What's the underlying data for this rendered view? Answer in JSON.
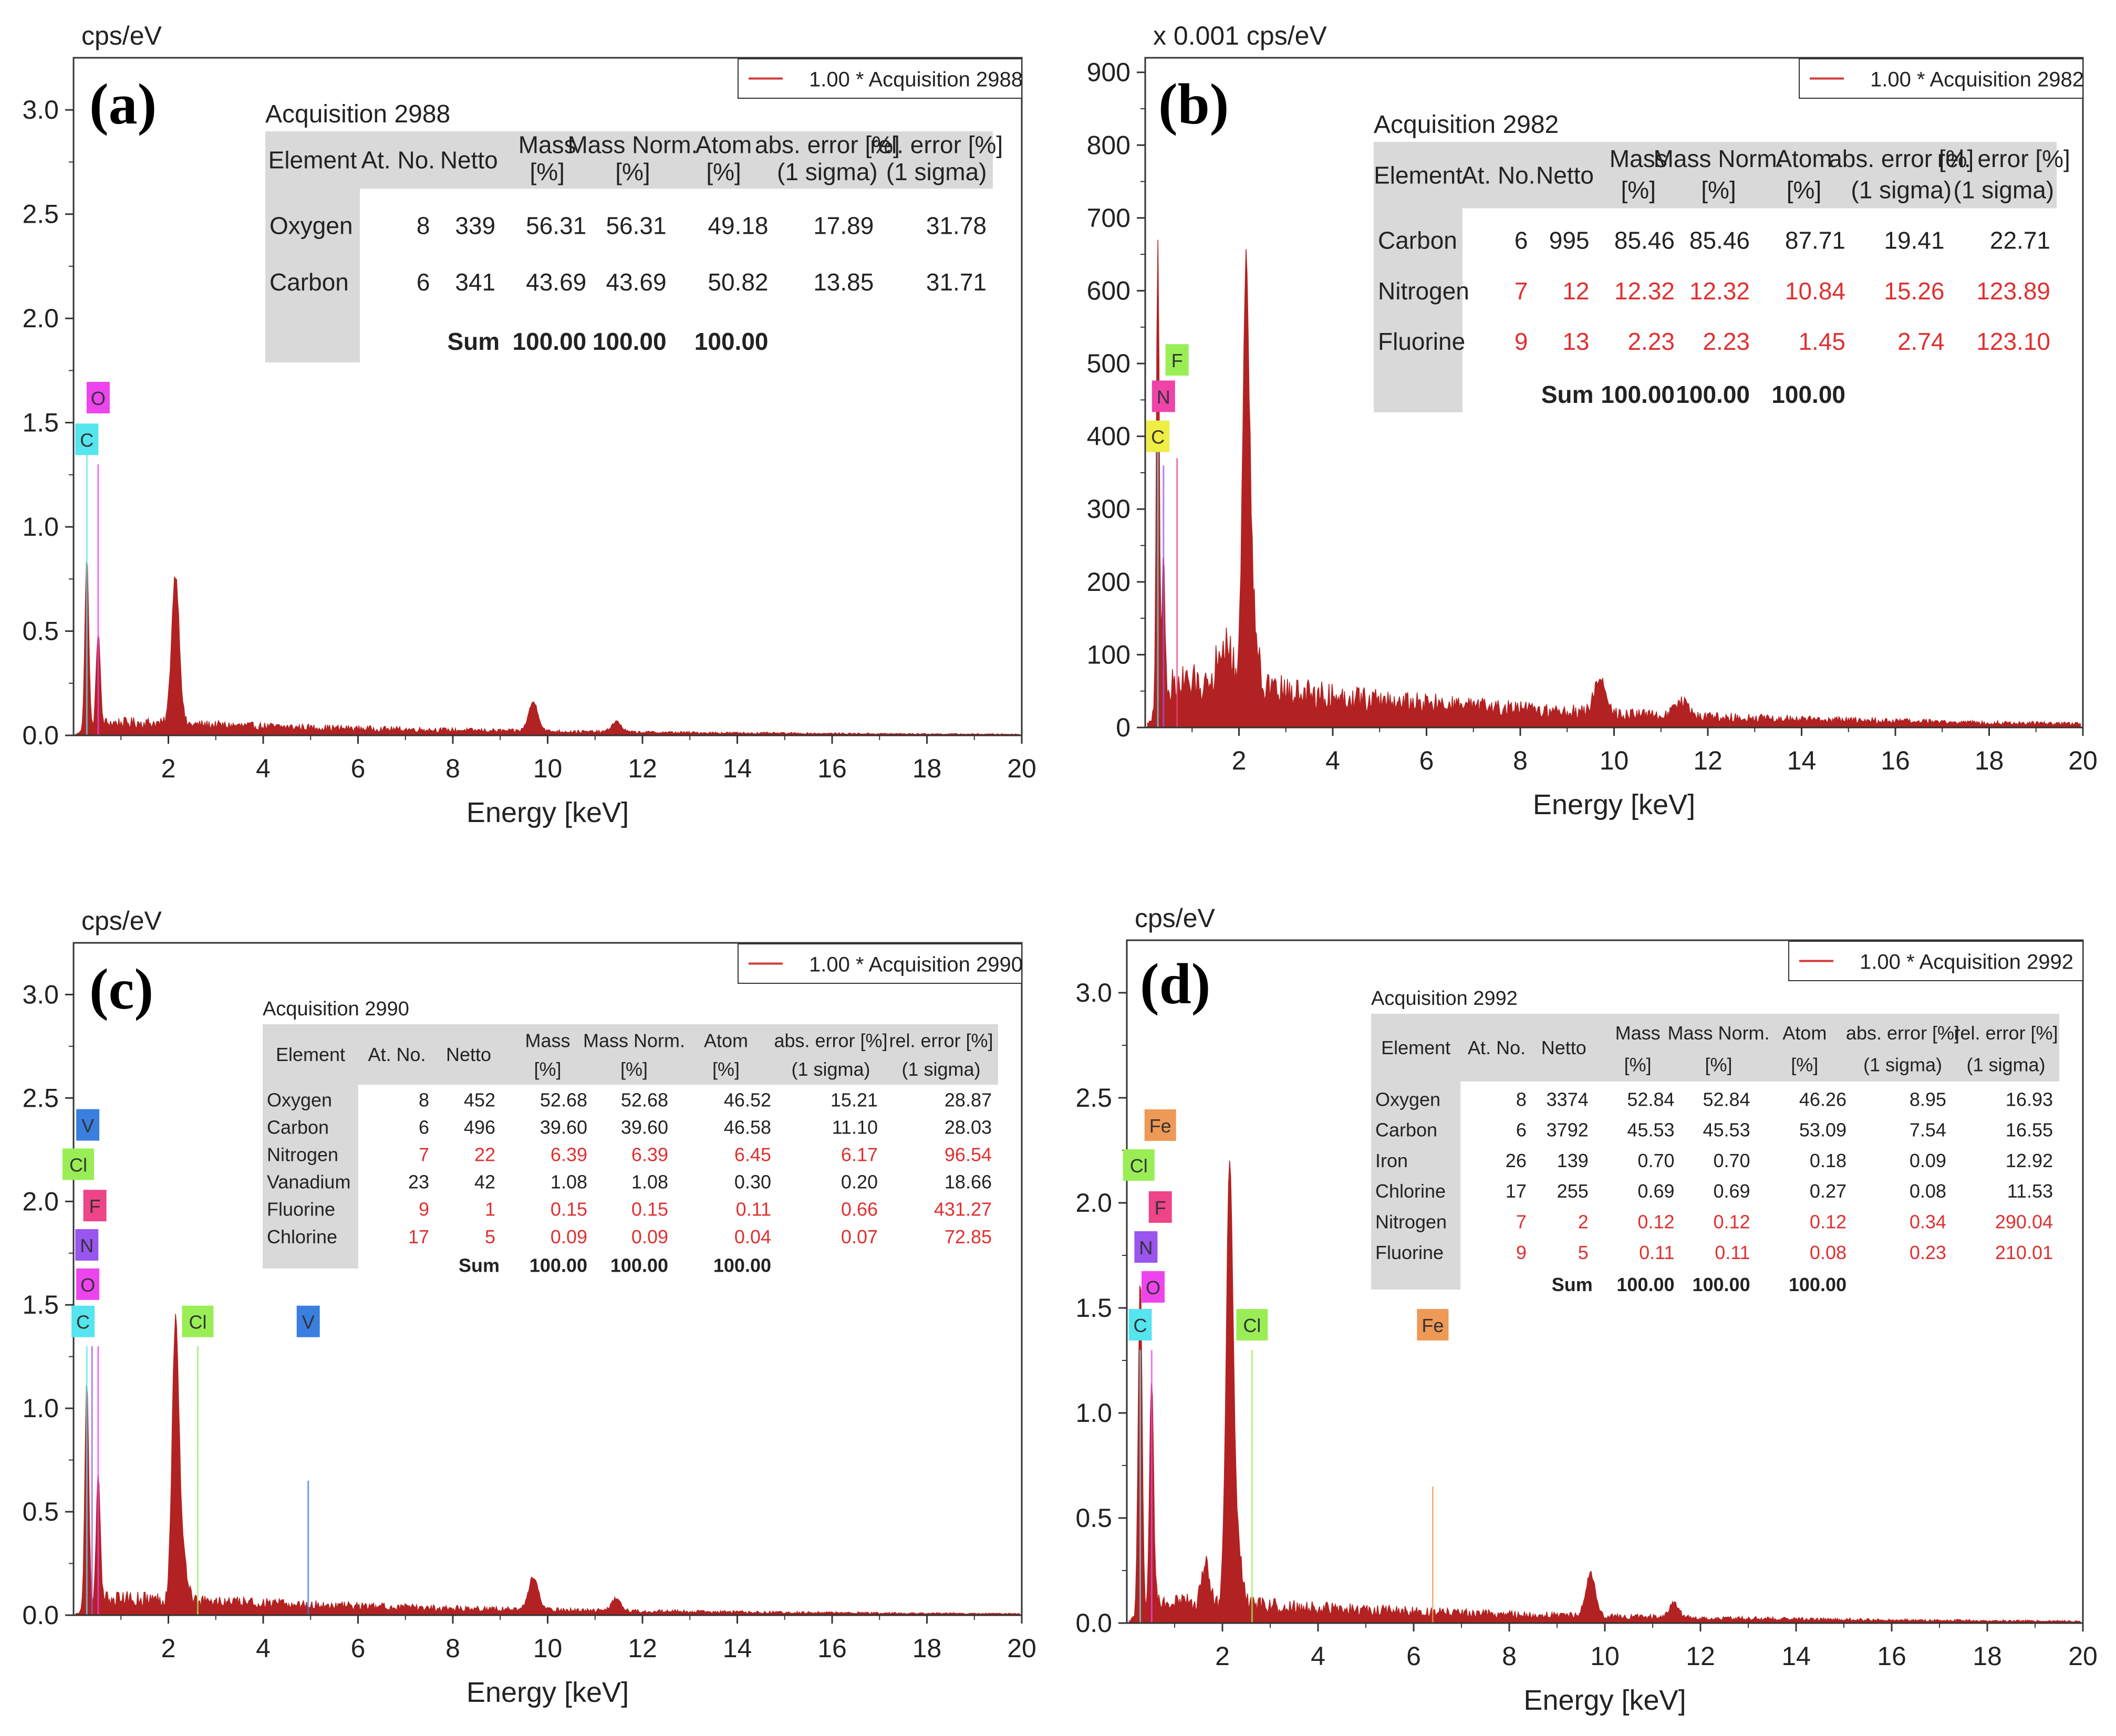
{
  "figure": {
    "panels": [
      {
        "letter": "(a)",
        "y_unit": "cps/eV",
        "legend": "1.00 * Acquisition 2988",
        "table": {
          "title": "Acquisition 2988",
          "headers": [
            [
              "Element"
            ],
            [
              "At. No."
            ],
            [
              "Netto"
            ],
            [
              "Mass",
              "[%]"
            ],
            [
              "Mass Norm.",
              "[%]"
            ],
            [
              "Atom",
              "[%]"
            ],
            [
              "abs. error [%]",
              "(1 sigma)"
            ],
            [
              "rel. error [%]",
              "(1 sigma)"
            ]
          ],
          "rows": [
            {
              "element": "Oxygen",
              "at_no": "8",
              "netto": "339",
              "mass": "56.31",
              "mass_norm": "56.31",
              "atom": "49.18",
              "abs_error": "17.89",
              "rel_error": "31.78",
              "flag": false
            },
            {
              "element": "Carbon",
              "at_no": "6",
              "netto": "341",
              "mass": "43.69",
              "mass_norm": "43.69",
              "atom": "50.82",
              "abs_error": "13.85",
              "rel_error": "31.71",
              "flag": false
            }
          ],
          "sum": {
            "label": "Sum",
            "mass": "100.00",
            "mass_norm": "100.00",
            "atom": "100.00"
          }
        }
      },
      {
        "letter": "(b)",
        "y_unit": "x 0.001 cps/eV",
        "legend": "1.00 * Acquisition 2982",
        "table": {
          "title": "Acquisition 2982",
          "headers": [
            [
              "Element"
            ],
            [
              "At. No."
            ],
            [
              "Netto"
            ],
            [
              "Mass",
              "[%]"
            ],
            [
              "Mass Norm.",
              "[%]"
            ],
            [
              "Atom",
              "[%]"
            ],
            [
              "abs. error [%]",
              "(1 sigma)"
            ],
            [
              "rel. error [%]",
              "(1 sigma)"
            ]
          ],
          "rows": [
            {
              "element": "Carbon",
              "at_no": "6",
              "netto": "995",
              "mass": "85.46",
              "mass_norm": "85.46",
              "atom": "87.71",
              "abs_error": "19.41",
              "rel_error": "22.71",
              "flag": false
            },
            {
              "element": "Nitrogen",
              "at_no": "7",
              "netto": "12",
              "mass": "12.32",
              "mass_norm": "12.32",
              "atom": "10.84",
              "abs_error": "15.26",
              "rel_error": "123.89",
              "flag": true
            },
            {
              "element": "Fluorine",
              "at_no": "9",
              "netto": "13",
              "mass": "2.23",
              "mass_norm": "2.23",
              "atom": "1.45",
              "abs_error": "2.74",
              "rel_error": "123.10",
              "flag": true
            }
          ],
          "sum": {
            "label": "Sum",
            "mass": "100.00",
            "mass_norm": "100.00",
            "atom": "100.00"
          }
        }
      },
      {
        "letter": "(c)",
        "y_unit": "cps/eV",
        "legend": "1.00 * Acquisition 2990",
        "table": {
          "title": "Acquisition 2990",
          "headers": [
            [
              "Element"
            ],
            [
              "At. No."
            ],
            [
              "Netto"
            ],
            [
              "Mass",
              "[%]"
            ],
            [
              "Mass Norm.",
              "[%]"
            ],
            [
              "Atom",
              "[%]"
            ],
            [
              "abs. error [%]",
              "(1 sigma)"
            ],
            [
              "rel. error [%]",
              "(1 sigma)"
            ]
          ],
          "rows": [
            {
              "element": "Oxygen",
              "at_no": "8",
              "netto": "452",
              "mass": "52.68",
              "mass_norm": "52.68",
              "atom": "46.52",
              "abs_error": "15.21",
              "rel_error": "28.87",
              "flag": false
            },
            {
              "element": "Carbon",
              "at_no": "6",
              "netto": "496",
              "mass": "39.60",
              "mass_norm": "39.60",
              "atom": "46.58",
              "abs_error": "11.10",
              "rel_error": "28.03",
              "flag": false
            },
            {
              "element": "Nitrogen",
              "at_no": "7",
              "netto": "22",
              "mass": "6.39",
              "mass_norm": "6.39",
              "atom": "6.45",
              "abs_error": "6.17",
              "rel_error": "96.54",
              "flag": true
            },
            {
              "element": "Vanadium",
              "at_no": "23",
              "netto": "42",
              "mass": "1.08",
              "mass_norm": "1.08",
              "atom": "0.30",
              "abs_error": "0.20",
              "rel_error": "18.66",
              "flag": false
            },
            {
              "element": "Fluorine",
              "at_no": "9",
              "netto": "1",
              "mass": "0.15",
              "mass_norm": "0.15",
              "atom": "0.11",
              "abs_error": "0.66",
              "rel_error": "431.27",
              "flag": true
            },
            {
              "element": "Chlorine",
              "at_no": "17",
              "netto": "5",
              "mass": "0.09",
              "mass_norm": "0.09",
              "atom": "0.04",
              "abs_error": "0.07",
              "rel_error": "72.85",
              "flag": true
            }
          ],
          "sum": {
            "label": "Sum",
            "mass": "100.00",
            "mass_norm": "100.00",
            "atom": "100.00"
          }
        }
      },
      {
        "letter": "(d)",
        "y_unit": "cps/eV",
        "legend": "1.00 * Acquisition 2992",
        "table": {
          "title": "Acquisition 2992",
          "headers": [
            [
              "Element"
            ],
            [
              "At. No."
            ],
            [
              "Netto"
            ],
            [
              "Mass",
              "[%]"
            ],
            [
              "Mass Norm.",
              "[%]"
            ],
            [
              "Atom",
              "[%]"
            ],
            [
              "abs. error [%]",
              "(1 sigma)"
            ],
            [
              "rel. error [%]",
              "(1 sigma)"
            ]
          ],
          "rows": [
            {
              "element": "Oxygen",
              "at_no": "8",
              "netto": "3374",
              "mass": "52.84",
              "mass_norm": "52.84",
              "atom": "46.26",
              "abs_error": "8.95",
              "rel_error": "16.93",
              "flag": false
            },
            {
              "element": "Carbon",
              "at_no": "6",
              "netto": "3792",
              "mass": "45.53",
              "mass_norm": "45.53",
              "atom": "53.09",
              "abs_error": "7.54",
              "rel_error": "16.55",
              "flag": false
            },
            {
              "element": "Iron",
              "at_no": "26",
              "netto": "139",
              "mass": "0.70",
              "mass_norm": "0.70",
              "atom": "0.18",
              "abs_error": "0.09",
              "rel_error": "12.92",
              "flag": false
            },
            {
              "element": "Chlorine",
              "at_no": "17",
              "netto": "255",
              "mass": "0.69",
              "mass_norm": "0.69",
              "atom": "0.27",
              "abs_error": "0.08",
              "rel_error": "11.53",
              "flag": false
            },
            {
              "element": "Nitrogen",
              "at_no": "7",
              "netto": "2",
              "mass": "0.12",
              "mass_norm": "0.12",
              "atom": "0.12",
              "abs_error": "0.34",
              "rel_error": "290.04",
              "flag": true
            },
            {
              "element": "Fluorine",
              "at_no": "9",
              "netto": "5",
              "mass": "0.11",
              "mass_norm": "0.11",
              "atom": "0.08",
              "abs_error": "0.23",
              "rel_error": "210.01",
              "flag": true
            }
          ],
          "sum": {
            "label": "Sum",
            "mass": "100.00",
            "mass_norm": "100.00",
            "atom": "100.00"
          }
        }
      }
    ]
  },
  "colors": {
    "spectrum": "#b22222",
    "axis": "#333333",
    "table_header_bg": "#d9d9d9",
    "flag_text": "#e03030",
    "legend_line": "#d33a3a",
    "element_tags": {
      "O": "#ee44ee",
      "C": "#55e5ee",
      "N": "#9955ee",
      "F": "#ee4488",
      "Cl": "#99ee55",
      "V": "#3a7fe0",
      "Fe": "#ee9955"
    },
    "element_tags_b": {
      "F": "#99ee55",
      "N": "#ee44aa",
      "C": "#eeee44"
    }
  },
  "chart_data": [
    {
      "type": "area",
      "title": "(a)",
      "xlabel": "Energy [keV]",
      "ylabel": "cps/eV",
      "xlim": [
        0,
        20
      ],
      "ylim": [
        0,
        3.25
      ],
      "xticks": [
        2,
        4,
        6,
        8,
        10,
        12,
        14,
        16,
        18,
        20
      ],
      "yticks": [
        0.0,
        0.5,
        1.0,
        1.5,
        2.0,
        2.5,
        3.0
      ],
      "ytick_labels": [
        "0.0",
        "0.5",
        "1.0",
        "1.5",
        "2.0",
        "2.5",
        "3.0"
      ],
      "legend": "1.00 * Acquisition 2988",
      "background": 0.06,
      "peaks": [
        {
          "x": 0.28,
          "y": 0.82,
          "w": 0.04
        },
        {
          "x": 0.52,
          "y": 0.45,
          "w": 0.04
        },
        {
          "x": 2.15,
          "y": 0.72,
          "w": 0.08
        },
        {
          "x": 9.7,
          "y": 0.14,
          "w": 0.1
        },
        {
          "x": 11.45,
          "y": 0.05,
          "w": 0.1
        }
      ],
      "element_markers": [
        {
          "label": "O",
          "x": 0.52,
          "y": 1.3
        },
        {
          "label": "C",
          "x": 0.28,
          "y": 1.38
        }
      ],
      "element_tags": [
        {
          "label": "O",
          "x": 0.52,
          "y": 1.62
        },
        {
          "label": "C",
          "x": 0.28,
          "y": 1.42
        }
      ]
    },
    {
      "type": "area",
      "title": "(b)",
      "xlabel": "Energy [keV]",
      "ylabel": "x 0.001 cps/eV",
      "xlim": [
        0,
        20
      ],
      "ylim": [
        0,
        920
      ],
      "xticks": [
        2,
        4,
        6,
        8,
        10,
        12,
        14,
        16,
        18,
        20
      ],
      "yticks": [
        0,
        100,
        200,
        300,
        400,
        500,
        600,
        700,
        800,
        900
      ],
      "ytick_labels": [
        "0",
        "100",
        "200",
        "300",
        "400",
        "500",
        "600",
        "700",
        "800",
        "900"
      ],
      "legend": "1.00 * Acquisition 2982",
      "background": 60,
      "peaks": [
        {
          "x": 0.27,
          "y": 640,
          "w": 0.03
        },
        {
          "x": 0.39,
          "y": 200,
          "w": 0.03
        },
        {
          "x": 1.7,
          "y": 60,
          "w": 0.15
        },
        {
          "x": 2.15,
          "y": 550,
          "w": 0.07
        },
        {
          "x": 2.3,
          "y": 100,
          "w": 0.1
        },
        {
          "x": 9.7,
          "y": 50,
          "w": 0.12
        },
        {
          "x": 11.45,
          "y": 20,
          "w": 0.15
        }
      ],
      "element_markers": [
        {
          "label": "F",
          "x": 0.68,
          "y": 370
        },
        {
          "label": "N",
          "x": 0.39,
          "y": 360
        },
        {
          "label": "C",
          "x": 0.27,
          "y": 380
        }
      ],
      "element_tags": [
        {
          "label": "F",
          "x": 0.68,
          "y": 505
        },
        {
          "label": "N",
          "x": 0.39,
          "y": 455
        },
        {
          "label": "C",
          "x": 0.27,
          "y": 400
        }
      ]
    },
    {
      "type": "area",
      "title": "(c)",
      "xlabel": "Energy [keV]",
      "ylabel": "cps/eV",
      "xlim": [
        0,
        20
      ],
      "ylim": [
        0,
        3.25
      ],
      "xticks": [
        2,
        4,
        6,
        8,
        10,
        12,
        14,
        16,
        18,
        20
      ],
      "yticks": [
        0.0,
        0.5,
        1.0,
        1.5,
        2.0,
        2.5,
        3.0
      ],
      "ytick_labels": [
        "0.0",
        "0.5",
        "1.0",
        "1.5",
        "2.0",
        "2.5",
        "3.0"
      ],
      "legend": "1.00 * Acquisition 2990",
      "background": 0.08,
      "peaks": [
        {
          "x": 0.28,
          "y": 1.1,
          "w": 0.04
        },
        {
          "x": 0.52,
          "y": 0.6,
          "w": 0.04
        },
        {
          "x": 2.15,
          "y": 1.3,
          "w": 0.07
        },
        {
          "x": 2.3,
          "y": 0.2,
          "w": 0.1
        },
        {
          "x": 9.7,
          "y": 0.16,
          "w": 0.1
        },
        {
          "x": 11.45,
          "y": 0.06,
          "w": 0.1
        }
      ],
      "element_markers": [
        {
          "label": "Cl",
          "x": 2.62,
          "y": 1.3
        },
        {
          "label": "V",
          "x": 4.95,
          "y": 0.65
        },
        {
          "label": "O",
          "x": 0.52,
          "y": 1.3
        },
        {
          "label": "N",
          "x": 0.39,
          "y": 1.3
        },
        {
          "label": "C",
          "x": 0.28,
          "y": 1.3
        }
      ],
      "element_tags": [
        {
          "label": "V",
          "x": 0.3,
          "y": 2.37
        },
        {
          "label": "Cl",
          "x": 0.1,
          "y": 2.18
        },
        {
          "label": "F",
          "x": 0.45,
          "y": 1.98
        },
        {
          "label": "N",
          "x": 0.28,
          "y": 1.79
        },
        {
          "label": "O",
          "x": 0.3,
          "y": 1.6
        },
        {
          "label": "C",
          "x": 0.2,
          "y": 1.42
        },
        {
          "label": "Cl",
          "x": 2.62,
          "y": 1.42
        },
        {
          "label": "V",
          "x": 4.95,
          "y": 1.42
        }
      ]
    },
    {
      "type": "area",
      "title": "(d)",
      "xlabel": "Energy [keV]",
      "ylabel": "cps/eV",
      "xlim": [
        0,
        20
      ],
      "ylim": [
        0,
        3.25
      ],
      "xticks": [
        2,
        4,
        6,
        8,
        10,
        12,
        14,
        16,
        18,
        20
      ],
      "yticks": [
        0.0,
        0.5,
        1.0,
        1.5,
        2.0,
        2.5,
        3.0
      ],
      "ytick_labels": [
        "0.0",
        "0.5",
        "1.0",
        "1.5",
        "2.0",
        "2.5",
        "3.0"
      ],
      "legend": "1.00 * Acquisition 2992",
      "background": 0.1,
      "peaks": [
        {
          "x": 0.28,
          "y": 1.6,
          "w": 0.04
        },
        {
          "x": 0.52,
          "y": 1.1,
          "w": 0.04
        },
        {
          "x": 1.65,
          "y": 0.18,
          "w": 0.08
        },
        {
          "x": 2.15,
          "y": 2.0,
          "w": 0.07
        },
        {
          "x": 2.3,
          "y": 0.3,
          "w": 0.1
        },
        {
          "x": 9.7,
          "y": 0.2,
          "w": 0.1
        },
        {
          "x": 11.45,
          "y": 0.07,
          "w": 0.1
        }
      ],
      "element_markers": [
        {
          "label": "Cl",
          "x": 2.62,
          "y": 1.3
        },
        {
          "label": "Fe",
          "x": 6.4,
          "y": 0.65
        },
        {
          "label": "O",
          "x": 0.52,
          "y": 1.3
        },
        {
          "label": "C",
          "x": 0.28,
          "y": 1.3
        }
      ],
      "element_tags": [
        {
          "label": "Fe",
          "x": 0.7,
          "y": 2.37
        },
        {
          "label": "Cl",
          "x": 0.25,
          "y": 2.18
        },
        {
          "label": "F",
          "x": 0.7,
          "y": 1.98
        },
        {
          "label": "N",
          "x": 0.4,
          "y": 1.79
        },
        {
          "label": "O",
          "x": 0.55,
          "y": 1.6
        },
        {
          "label": "C",
          "x": 0.28,
          "y": 1.42
        },
        {
          "label": "Cl",
          "x": 2.62,
          "y": 1.42
        },
        {
          "label": "Fe",
          "x": 6.4,
          "y": 1.42
        }
      ]
    }
  ]
}
